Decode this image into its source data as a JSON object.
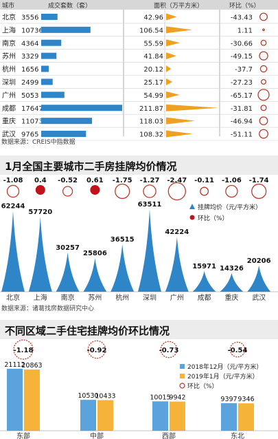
{
  "chart_data": [
    {
      "type": "table",
      "headers": {
        "city": "城市",
        "deals": "成交套数（套）",
        "area": "面积（万平方米）",
        "mom": "环比（%）"
      },
      "rows": [
        {
          "city": "北京",
          "deals": 3556,
          "area": 42.96,
          "mom": -43.43
        },
        {
          "city": "上海",
          "deals": 10736,
          "area": 106.54,
          "mom": 1.11
        },
        {
          "city": "南京",
          "deals": 4364,
          "area": 55.59,
          "mom": -30.66
        },
        {
          "city": "苏州",
          "deals": 3329,
          "area": 41.84,
          "mom": -49.15
        },
        {
          "city": "杭州",
          "deals": 1656,
          "area": 20.12,
          "mom": -37.7
        },
        {
          "city": "深圳",
          "deals": 2499,
          "area": 25.17,
          "mom": -27.23
        },
        {
          "city": "广州",
          "deals": 5053,
          "area": 54.99,
          "mom": -65.17
        },
        {
          "city": "成都",
          "deals": 17647,
          "area": 211.87,
          "mom": -31.81
        },
        {
          "city": "重庆",
          "deals": 11073,
          "area": 118.03,
          "mom": -46.94
        },
        {
          "city": "武汉",
          "deals": 9765,
          "area": 108.32,
          "mom": -51.11
        }
      ],
      "source": "数据来源：CREIS中指数据",
      "colors": {
        "deals_bar": "#2e86c8",
        "area_bar": "#f0a020",
        "mom_circle": "#c0392b"
      }
    },
    {
      "type": "bar",
      "title": "1月全国主要城市二手房挂牌均价情况",
      "categories": [
        "北京",
        "上海",
        "南京",
        "苏州",
        "杭州",
        "深圳",
        "广州",
        "成都",
        "重庆",
        "武汉"
      ],
      "series": [
        {
          "name": "挂牌均价（元/平方米）",
          "values": [
            62244,
            57720,
            30257,
            25806,
            36515,
            63511,
            42224,
            15971,
            14326,
            20206
          ]
        },
        {
          "name": "环比（%）",
          "values": [
            -1.08,
            0.4,
            -0.52,
            0.61,
            -1.75,
            -1.27,
            -2.47,
            -0.11,
            -1.06,
            -1.74
          ]
        }
      ],
      "source": "数据来源：诸葛找房数据研究中心",
      "colors": {
        "price": "#2e86c8",
        "positive": "#c0141a",
        "negative": "#c0392b"
      }
    },
    {
      "type": "bar",
      "title": "不同区域二手住宅挂牌均价环比情况",
      "categories": [
        "东部",
        "中部",
        "西部",
        "东北"
      ],
      "series": [
        {
          "name": "2018年12月（元/平方米）",
          "values": [
            21112,
            10530,
            10015,
            9397
          ]
        },
        {
          "name": "2019年1月（元/平方米）",
          "values": [
            20863,
            10433,
            9942,
            9346
          ]
        },
        {
          "name": "环比（%）",
          "values": [
            -1.18,
            -0.92,
            -0.73,
            -0.54
          ]
        }
      ],
      "colors": {
        "dec": "#5aa3dc",
        "jan": "#f5b33a",
        "mom": "#c0392b"
      }
    }
  ]
}
